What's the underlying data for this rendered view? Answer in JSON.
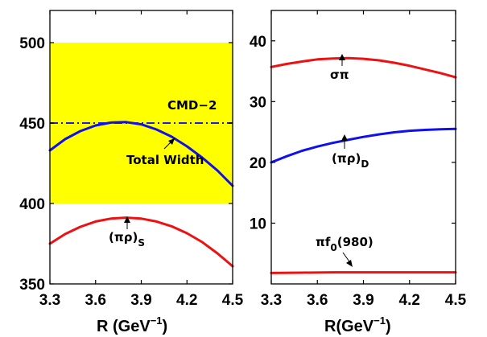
{
  "chart_data": [
    {
      "type": "line",
      "xlabel": "R (GeV",
      "xlabel_sup": "−1",
      "xlabel_close": ")",
      "xlim": [
        3.3,
        4.5
      ],
      "ylim": [
        350,
        520
      ],
      "xticks": [
        "3.3",
        "3.6",
        "3.9",
        "4.2",
        "4.5"
      ],
      "yticks": [
        "350",
        "400",
        "450",
        "500"
      ],
      "band": {
        "y0": 400,
        "y1": 500,
        "color": "#ffff00"
      },
      "reference_line": {
        "y": 450,
        "label": "CMD−2",
        "color": "#1a1aff",
        "style": "dash-dot"
      },
      "series": [
        {
          "key": "total",
          "color": "#1010ee",
          "x": [
            3.3,
            3.4,
            3.5,
            3.6,
            3.7,
            3.8,
            3.9,
            4.0,
            4.1,
            4.2,
            4.3,
            4.4,
            4.5
          ],
          "y": [
            433,
            440,
            445,
            448.5,
            450.3,
            450.6,
            449.2,
            446,
            441.5,
            435.5,
            428.5,
            420.5,
            411
          ]
        },
        {
          "key": "pirho_s",
          "color": "#ee1111",
          "x": [
            3.3,
            3.4,
            3.5,
            3.6,
            3.7,
            3.8,
            3.9,
            4.0,
            4.1,
            4.2,
            4.3,
            4.4,
            4.5
          ],
          "y": [
            375,
            381,
            385.5,
            388.8,
            390.6,
            391.2,
            390.6,
            388.8,
            385.8,
            381.5,
            376,
            369,
            361
          ]
        }
      ],
      "annotations": [
        {
          "key": "total",
          "text": "Total Width",
          "arrow_x": 4.1,
          "arrow_y": 441.5
        },
        {
          "key": "pirho_s",
          "base": "(πρ)",
          "sub": "S",
          "arrow_x": 3.77,
          "arrow_y": 391
        }
      ]
    },
    {
      "type": "line",
      "xlabel": "R(GeV",
      "xlabel_sup": "−1",
      "xlabel_close": ")",
      "xlim": [
        3.3,
        4.5
      ],
      "ylim": [
        0,
        45
      ],
      "xticks": [
        "3.3",
        "3.6",
        "3.9",
        "4.2",
        "4.5"
      ],
      "yticks": [
        "10",
        "20",
        "30",
        "40"
      ],
      "series": [
        {
          "key": "sigmapi",
          "color": "#ee1111",
          "x": [
            3.3,
            3.4,
            3.5,
            3.6,
            3.7,
            3.8,
            3.9,
            4.0,
            4.1,
            4.2,
            4.3,
            4.4,
            4.5
          ],
          "y": [
            35.7,
            36.2,
            36.6,
            36.95,
            37.1,
            37.15,
            37.05,
            36.8,
            36.4,
            35.9,
            35.3,
            34.7,
            34.0
          ]
        },
        {
          "key": "pirho_d",
          "color": "#1010ee",
          "x": [
            3.3,
            3.4,
            3.5,
            3.6,
            3.7,
            3.8,
            3.9,
            4.0,
            4.1,
            4.2,
            4.3,
            4.4,
            4.5
          ],
          "y": [
            20,
            21,
            21.9,
            22.6,
            23.2,
            23.7,
            24.2,
            24.6,
            24.95,
            25.2,
            25.35,
            25.45,
            25.5
          ]
        },
        {
          "key": "pif0",
          "color": "#ee1111",
          "x": [
            3.3,
            3.5,
            3.7,
            3.9,
            4.1,
            4.3,
            4.5
          ],
          "y": [
            1.8,
            1.85,
            1.9,
            1.9,
            1.9,
            1.9,
            1.9
          ]
        }
      ],
      "annotations": [
        {
          "key": "sigmapi",
          "text": "σπ",
          "arrow_x": 3.77,
          "arrow_y": 37.1
        },
        {
          "key": "pirho_d",
          "base": "(πρ)",
          "sub": "D",
          "arrow_x": 3.8,
          "arrow_y": 23.7
        },
        {
          "key": "pif0",
          "base": "πf",
          "sub": "0",
          "rest": "(980)",
          "arrow_x": 3.85,
          "arrow_y": 1.9
        }
      ]
    }
  ]
}
